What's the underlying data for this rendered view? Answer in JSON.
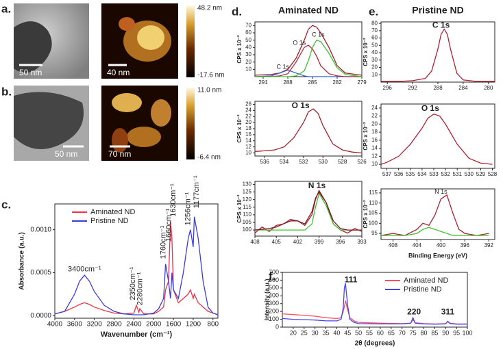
{
  "panel_labels": [
    "a.",
    "b.",
    "c.",
    "d.",
    "e.",
    "f."
  ],
  "images": [
    {
      "scale_bar": "50 nm"
    },
    {
      "scale_bar": "40 nm",
      "colorbar": [
        "48.2 nm",
        "-17.6 nm"
      ]
    },
    {
      "scale_bar": "50 nm"
    },
    {
      "scale_bar": "70 nm",
      "colorbar": [
        "11.0 nm",
        "-6.4 nm"
      ]
    }
  ],
  "chart_data": [
    {
      "type": "line",
      "xlabel": "Wavenumber (cm⁻¹)",
      "ylabel": "Absorbance (a.u.)",
      "legend": "upper left",
      "x": [
        4000,
        3800,
        3600,
        3500,
        3400,
        3300,
        3200,
        3000,
        2800,
        2600,
        2400,
        2350,
        2300,
        2280,
        2200,
        2000,
        1900,
        1800,
        1760,
        1700,
        1660,
        1630,
        1600,
        1500,
        1400,
        1300,
        1256,
        1200,
        1177,
        1100,
        1000,
        900,
        800,
        700
      ],
      "series": [
        {
          "name": "Aminated ND",
          "color": "#e8334a",
          "values": [
            2e-05,
            5e-05,
            0.0001,
            0.00013,
            0.00015,
            0.00013,
            0.0001,
            6e-05,
            3e-05,
            2e-05,
            3e-05,
            0.00012,
            4e-05,
            8e-05,
            2e-05,
            2e-05,
            5e-05,
            0.0001,
            0.0003,
            0.0004,
            0.0011,
            0.0009,
            0.0003,
            0.00015,
            0.0002,
            0.00025,
            0.0003,
            0.0002,
            0.00025,
            0.00015,
            0.0001,
            5e-05,
            3e-05,
            1e-05
          ]
        },
        {
          "name": "Pristine ND",
          "color": "#3b3bd9",
          "values": [
            2e-05,
            5e-05,
            0.00025,
            0.0004,
            0.00047,
            0.0004,
            0.00028,
            0.00012,
            5e-05,
            2e-05,
            1e-05,
            1e-05,
            1e-05,
            1e-05,
            1e-05,
            3e-05,
            8e-05,
            0.0002,
            0.0006,
            0.0004,
            0.0002,
            0.0005,
            0.0003,
            0.0002,
            0.0005,
            0.0009,
            0.001,
            0.0008,
            0.00115,
            0.0009,
            0.0004,
            0.0001,
            3e-05,
            1e-05
          ]
        }
      ],
      "xlim": [
        4000,
        700
      ],
      "xticks": [
        4000,
        3600,
        3200,
        2800,
        2400,
        2000,
        1600,
        1200,
        800
      ],
      "ylim": [
        -3e-05,
        0.0013
      ],
      "yticks": [
        {
          "value": 0,
          "label": "0.0000"
        },
        {
          "value": 0.0005,
          "label": "0.0005"
        },
        {
          "value": 0.001,
          "label": "0.0010"
        }
      ],
      "annotations": [
        {
          "label": "3400cm⁻¹",
          "x": 3400,
          "y": 0.00054
        },
        {
          "label": "2350cm⁻¹",
          "x": 2420,
          "y": 0.00018,
          "vertical": true
        },
        {
          "label": "2280cm⁻¹",
          "x": 2270,
          "y": 0.00012,
          "vertical": true
        },
        {
          "label": "1760cm⁻¹",
          "x": 1800,
          "y": 0.00066,
          "vertical": true
        },
        {
          "label": "1660cm⁻¹",
          "x": 1690,
          "y": 0.00086,
          "vertical": true
        },
        {
          "label": "1630cm⁻¹",
          "x": 1600,
          "y": 0.00115,
          "vertical": true
        },
        {
          "label": "1256cm⁻¹",
          "x": 1300,
          "y": 0.00105,
          "vertical": true
        },
        {
          "label": "1177cm⁻¹",
          "x": 1130,
          "y": 0.00125,
          "vertical": true
        }
      ]
    },
    {
      "type": "line",
      "title": "Aminated ND",
      "ylabel": "CPS x 10⁻²",
      "x": [
        292,
        290,
        289,
        288,
        287,
        286,
        285.5,
        285,
        284.5,
        284,
        283,
        282,
        281,
        279
      ],
      "series": [
        {
          "color": "#a0202a",
          "values": [
            2,
            3,
            5,
            10,
            25,
            50,
            65,
            70,
            68,
            60,
            40,
            15,
            5,
            2
          ]
        },
        {
          "color": "#3060d0",
          "values": [
            0,
            1,
            5,
            9,
            5,
            1,
            0,
            0,
            0,
            0,
            0,
            0,
            0,
            0
          ]
        },
        {
          "color": "#b02838",
          "values": [
            0,
            0,
            1,
            4,
            20,
            40,
            43,
            38,
            28,
            15,
            4,
            1,
            0,
            0
          ]
        },
        {
          "color": "#40c030",
          "values": [
            0,
            0,
            0,
            0,
            1,
            8,
            22,
            40,
            50,
            48,
            32,
            12,
            3,
            0
          ]
        }
      ],
      "xlim": [
        292,
        279
      ],
      "xticks": [
        291,
        288,
        285,
        282,
        279
      ],
      "ylim": [
        0,
        75
      ],
      "yticks": [
        10,
        20,
        30,
        40,
        50,
        60,
        70
      ],
      "annotations": [
        {
          "label": "C 1s",
          "x": 288.6,
          "y": 13,
          "color": "#3060d0"
        },
        {
          "label": "O 1s",
          "x": 286.6,
          "y": 46,
          "color": "#b02838"
        },
        {
          "label": "C 1s",
          "x": 284.3,
          "y": 57,
          "color": "#40c030"
        }
      ]
    },
    {
      "type": "line",
      "ylabel": "CPS x 10⁻²",
      "x": [
        537,
        536,
        535,
        534,
        533,
        532,
        531.5,
        531,
        530.5,
        530,
        529,
        528,
        527,
        526
      ],
      "series": [
        {
          "color": "#a0202a",
          "values": [
            10.5,
            10.7,
            11,
            12,
            15,
            20,
            23.5,
            24.5,
            23,
            19,
            13,
            11,
            10.3,
            10
          ]
        }
      ],
      "xlim": [
        537,
        526
      ],
      "xticks": [
        536,
        534,
        532,
        530,
        528,
        526
      ],
      "ylim": [
        9,
        27
      ],
      "yticks": [
        10,
        12,
        14,
        16,
        18,
        20,
        22,
        24,
        26
      ],
      "annotations": [
        {
          "label": "O 1s",
          "x": 532.3,
          "y": 25.5,
          "color": "#b02030",
          "big": true
        }
      ]
    },
    {
      "type": "line",
      "ylabel": "CPS x 10⁻²",
      "x": [
        408,
        407,
        406,
        405,
        404,
        403,
        402,
        401,
        400,
        399.5,
        399,
        398,
        397,
        396,
        395,
        394,
        393
      ],
      "series": [
        {
          "color": "#b02030",
          "values": [
            98,
            102,
            99,
            103,
            104,
            107,
            106,
            103,
            110,
            120,
            126,
            118,
            104,
            100,
            98,
            101,
            99
          ]
        },
        {
          "color": "#40c030",
          "values": [
            100,
            100,
            100,
            100,
            100,
            100,
            100,
            100,
            104,
            115,
            124,
            116,
            104,
            100,
            100,
            100,
            100
          ]
        },
        {
          "color": "#7a1a22",
          "values": [
            100,
            100.5,
            101,
            102,
            104,
            106,
            106,
            104,
            112,
            121,
            125,
            118,
            106,
            101,
            100,
            100,
            100
          ]
        }
      ],
      "xlim": [
        408,
        393
      ],
      "xticks": [
        408,
        405,
        402,
        399,
        396,
        393
      ],
      "ylim": [
        96,
        132
      ],
      "yticks": [
        100,
        105,
        110,
        115,
        120,
        125,
        130
      ],
      "annotations": [
        {
          "label": "N 1s",
          "x": 399.3,
          "y": 129,
          "color": "#b02030",
          "big": true
        }
      ]
    },
    {
      "type": "line",
      "title": "Pristine ND",
      "ylabel": "CPS x 10⁻²",
      "x": [
        297,
        296,
        294,
        292,
        290,
        289,
        288,
        287.5,
        287,
        286.5,
        286,
        285,
        284,
        282,
        280,
        279
      ],
      "series": [
        {
          "color": "#b02030",
          "values": [
            1,
            1,
            1,
            2,
            5,
            15,
            45,
            65,
            72,
            65,
            45,
            12,
            3,
            1,
            1,
            1
          ]
        }
      ],
      "xlim": [
        297,
        279
      ],
      "xticks": [
        296,
        292,
        288,
        284,
        280
      ],
      "ylim": [
        0,
        82
      ],
      "yticks": [
        10,
        20,
        30,
        40,
        50,
        60,
        70,
        80
      ],
      "annotations": [
        {
          "label": "C 1s",
          "x": 287.5,
          "y": 77,
          "color": "#b02030",
          "big": true
        }
      ]
    },
    {
      "type": "line",
      "ylabel": "CPS x 10⁻²",
      "x": [
        537.5,
        537,
        536,
        535,
        534,
        533.5,
        533,
        532.5,
        532,
        531,
        530,
        529,
        528
      ],
      "series": [
        {
          "color": "#b02030",
          "values": [
            10,
            10.5,
            12,
            15,
            19,
            21.5,
            22.5,
            22,
            20,
            15,
            11.5,
            10.3,
            10
          ]
        }
      ],
      "xlim": [
        537.5,
        527.8
      ],
      "xticks": [
        537,
        536,
        535,
        534,
        533,
        532,
        531,
        530,
        529,
        528
      ],
      "ylim": [
        9,
        25
      ],
      "yticks": [
        10,
        12,
        14,
        16,
        18,
        20,
        22,
        24
      ],
      "annotations": [
        {
          "label": "O 1s",
          "x": 533.3,
          "y": 23.8,
          "color": "#b02030",
          "big": true
        }
      ]
    },
    {
      "type": "line",
      "xlabel": "Binding Energy (eV)",
      "ylabel": "CPS x 10⁻²",
      "x": [
        410,
        408,
        406,
        404,
        403,
        402,
        401,
        400,
        399,
        398,
        397,
        396,
        394,
        392
      ],
      "series": [
        {
          "color": "#b02030",
          "values": [
            94,
            95,
            94,
            97,
            100,
            99,
            104,
            112,
            114,
            105,
            97,
            95,
            94,
            95
          ]
        },
        {
          "color": "#40c030",
          "values": [
            94,
            94,
            94,
            95,
            97,
            98,
            97,
            96,
            95,
            94,
            94,
            94,
            94,
            94
          ]
        }
      ],
      "xlim": [
        410,
        391
      ],
      "xticks": [
        408,
        404,
        400,
        396,
        392
      ],
      "ylim": [
        92,
        117
      ],
      "yticks": [
        95,
        100,
        105,
        110,
        115
      ],
      "annotations": [
        {
          "label": "N 1s",
          "x": 400,
          "y": 115.5,
          "color": "#b02030"
        }
      ]
    },
    {
      "type": "line",
      "xlabel": "2θ (degrees)",
      "ylabel": "Intensity (a.u.)",
      "legend": "upper right",
      "x": [
        15,
        20,
        25,
        30,
        35,
        40,
        42,
        43,
        43.5,
        44,
        45,
        46,
        48,
        50,
        60,
        70,
        74,
        75,
        76,
        80,
        85,
        90,
        91,
        92,
        95,
        100
      ],
      "series": [
        {
          "name": "Aminated ND",
          "color": "#ff4d5a",
          "values": [
            170,
            160,
            150,
            140,
            120,
            110,
            120,
            200,
            260,
            340,
            220,
            120,
            80,
            60,
            50,
            45,
            50,
            95,
            55,
            45,
            40,
            45,
            70,
            50,
            40,
            40
          ]
        },
        {
          "name": "Pristine ND",
          "color": "#4444ee",
          "values": [
            110,
            100,
            95,
            90,
            80,
            80,
            100,
            250,
            500,
            560,
            280,
            100,
            60,
            45,
            40,
            40,
            50,
            120,
            50,
            40,
            38,
            40,
            75,
            45,
            38,
            38
          ]
        }
      ],
      "xlim": [
        15,
        100
      ],
      "xticks": [
        20,
        25,
        30,
        35,
        40,
        45,
        50,
        55,
        60,
        65,
        70,
        75,
        80,
        85,
        90,
        95,
        100
      ],
      "ylim": [
        0,
        700
      ],
      "yticks": [
        0,
        100,
        200,
        300,
        400,
        500,
        600,
        700
      ],
      "annotations": [
        {
          "label": "111",
          "x": 46.5,
          "y": 600,
          "big": true
        },
        {
          "label": "220",
          "x": 75.5,
          "y": 190,
          "big": true
        },
        {
          "label": "311",
          "x": 91,
          "y": 190,
          "big": true
        }
      ]
    }
  ]
}
